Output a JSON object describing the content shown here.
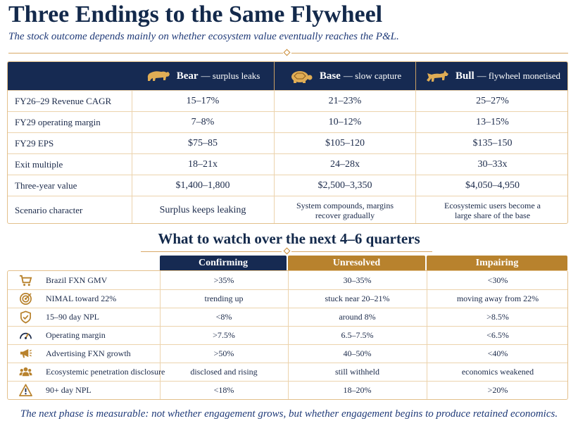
{
  "title": "Three Endings to the Same Flywheel",
  "subtitle": "The stock outcome depends mainly on whether ecosystem value eventually reaches the P&L.",
  "colors": {
    "navy": "#162a52",
    "gold": "#b8822d",
    "border": "#e3c08c"
  },
  "scenarios": {
    "columns": [
      {
        "name": "Bear",
        "desc": "— surplus leaks",
        "icon": "bear-icon"
      },
      {
        "name": "Base",
        "desc": "— slow capture",
        "icon": "turtle-icon"
      },
      {
        "name": "Bull",
        "desc": "— flywheel monetised",
        "icon": "bull-icon"
      }
    ],
    "rows": [
      {
        "label": "FY26–29 Revenue CAGR",
        "values": [
          "15–17%",
          "21–23%",
          "25–27%"
        ]
      },
      {
        "label": "FY29 operating margin",
        "values": [
          "7–8%",
          "10–12%",
          "13–15%"
        ]
      },
      {
        "label": "FY29 EPS",
        "values": [
          "$75–85",
          "$105–120",
          "$135–150"
        ]
      },
      {
        "label": "Exit multiple",
        "values": [
          "18–21x",
          "24–28x",
          "30–33x"
        ]
      },
      {
        "label": "Three-year value",
        "values": [
          "$1,400–1,800",
          "$2,500–3,350",
          "$4,050–4,950"
        ]
      },
      {
        "label": "Scenario character",
        "values": [
          "Surplus keeps leaking",
          "System compounds, margins recover gradually",
          "Ecosystemic users become a large share of the base"
        ]
      }
    ]
  },
  "watch": {
    "title": "What to watch over the next 4–6 quarters",
    "columns": [
      "Confirming",
      "Unresolved",
      "Impairing"
    ],
    "rows": [
      {
        "icon": "cart-icon",
        "label": "Brazil FXN GMV",
        "values": [
          ">35%",
          "30–35%",
          "<30%"
        ]
      },
      {
        "icon": "target-icon",
        "label": "NIMAL toward 22%",
        "values": [
          "trending up",
          "stuck near 20–21%",
          "moving away from 22%"
        ]
      },
      {
        "icon": "shield-check-icon",
        "label": "15–90 day NPL",
        "values": [
          "<8%",
          "around 8%",
          ">8.5%"
        ]
      },
      {
        "icon": "gauge-icon",
        "label": "Operating margin",
        "values": [
          ">7.5%",
          "6.5–7.5%",
          "<6.5%"
        ]
      },
      {
        "icon": "megaphone-icon",
        "label": "Advertising FXN growth",
        "values": [
          ">50%",
          "40–50%",
          "<40%"
        ]
      },
      {
        "icon": "people-icon",
        "label": "Ecosystemic penetration disclosure",
        "values": [
          "disclosed and rising",
          "still withheld",
          "economics weakened"
        ]
      },
      {
        "icon": "warning-icon",
        "label": "90+ day NPL",
        "values": [
          "<18%",
          "18–20%",
          ">20%"
        ]
      }
    ]
  },
  "footer": "The next phase is measurable: not whether engagement grows, but whether engagement begins to produce retained economics."
}
